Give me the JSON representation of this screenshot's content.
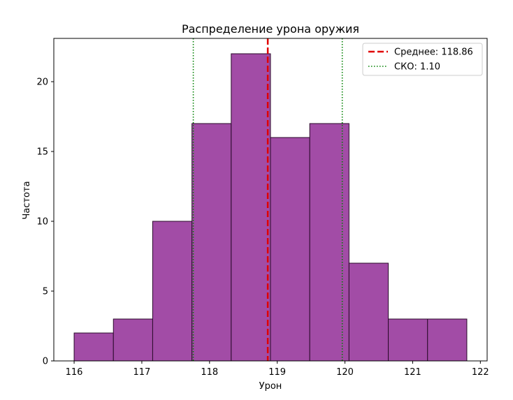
{
  "chart_data": {
    "type": "bar",
    "title": "Распределение урона оружия",
    "xlabel": "Урон",
    "ylabel": "Частота",
    "bin_edges": [
      116.0,
      116.58,
      117.16,
      117.74,
      118.32,
      118.9,
      119.48,
      120.06,
      120.64,
      121.22,
      121.8
    ],
    "values": [
      2,
      3,
      10,
      17,
      22,
      16,
      17,
      7,
      3,
      3
    ],
    "xlim": [
      115.7,
      122.1
    ],
    "ylim": [
      0,
      23.1
    ],
    "xticks": [
      116,
      117,
      118,
      119,
      120,
      121,
      122
    ],
    "yticks": [
      0,
      5,
      10,
      15,
      20
    ],
    "bar_color": "#a24ca6",
    "bar_edge_color": "#2a0a2a",
    "mean": {
      "value": 118.86,
      "label": "Среднее: 118.86",
      "color": "#e00000",
      "style": "dashed"
    },
    "std": {
      "value": 1.1,
      "label": "СКО: 1.10",
      "color": "#008000",
      "style": "dotted",
      "lines_at": [
        117.76,
        119.96
      ]
    },
    "legend_position": "top-right",
    "grid": false
  }
}
